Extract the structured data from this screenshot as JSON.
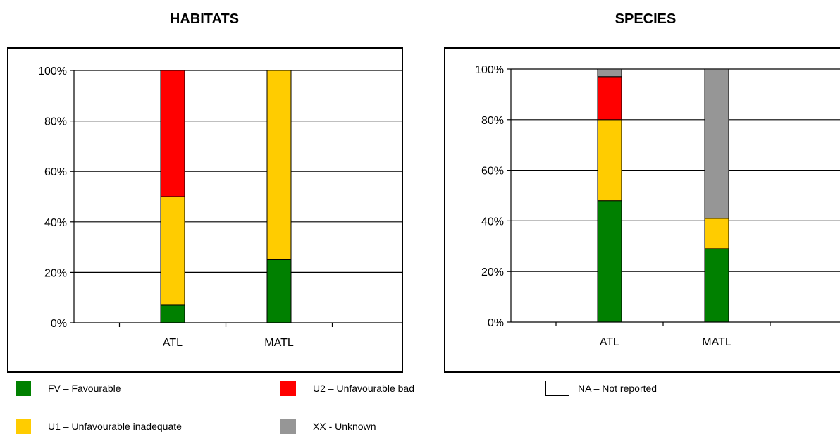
{
  "chart_data": [
    {
      "type": "bar",
      "stacked": true,
      "title": "HABITATS",
      "categories": [
        "ATL",
        "MATL"
      ],
      "yticks": [
        "0%",
        "20%",
        "40%",
        "60%",
        "80%",
        "100%"
      ],
      "ylim": [
        0,
        100
      ],
      "grid": true,
      "series": [
        {
          "name": "FV – Favourable",
          "key": "fv",
          "values": [
            7,
            25
          ]
        },
        {
          "name": "U1 – Unfavourable inadequate",
          "key": "u1",
          "values": [
            43,
            75
          ]
        },
        {
          "name": "U2 – Unfavourable bad",
          "key": "u2",
          "values": [
            50,
            0
          ]
        },
        {
          "name": "XX - Unknown",
          "key": "xx",
          "values": [
            0,
            0
          ]
        }
      ]
    },
    {
      "type": "bar",
      "stacked": true,
      "title": "SPECIES",
      "categories": [
        "ATL",
        "MATL"
      ],
      "yticks": [
        "0%",
        "20%",
        "40%",
        "60%",
        "80%",
        "100%"
      ],
      "ylim": [
        0,
        100
      ],
      "grid": true,
      "series": [
        {
          "name": "FV – Favourable",
          "key": "fv",
          "values": [
            48,
            29
          ]
        },
        {
          "name": "U1 – Unfavourable inadequate",
          "key": "u1",
          "values": [
            32,
            12
          ]
        },
        {
          "name": "U2 – Unfavourable bad",
          "key": "u2",
          "values": [
            17,
            0
          ]
        },
        {
          "name": "XX - Unknown",
          "key": "xx",
          "values": [
            3,
            59
          ]
        }
      ]
    }
  ],
  "colors": {
    "fv": "#008000",
    "u1": "#ffcc00",
    "u2": "#ff0000",
    "xx": "#969696"
  },
  "legend": [
    {
      "key": "fv",
      "label": "FV – Favourable"
    },
    {
      "key": "u2",
      "label": "U2 – Unfavourable bad"
    },
    {
      "key": "na",
      "label": "NA – Not reported"
    },
    {
      "key": "u1",
      "label": "U1 – Unfavourable inadequate"
    },
    {
      "key": "xx",
      "label": "XX - Unknown"
    }
  ]
}
